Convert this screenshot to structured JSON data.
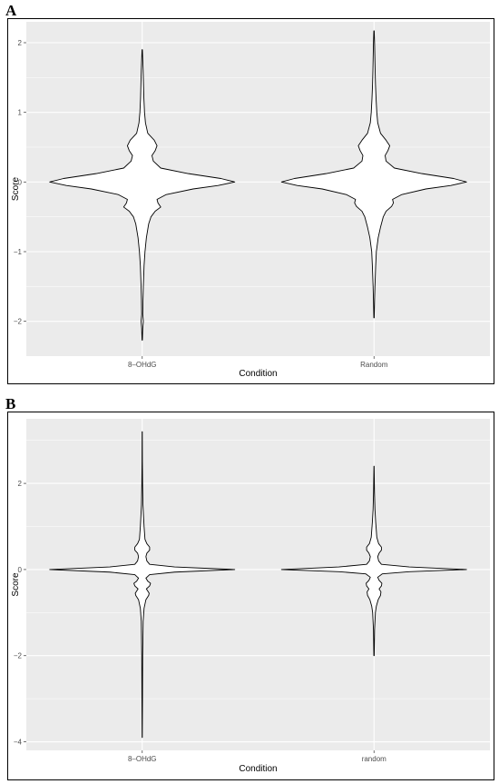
{
  "chart_data": [
    {
      "panel": "A",
      "type": "violin",
      "xlabel": "Condition",
      "ylabel": "Score",
      "categories": [
        "8–OHdG",
        "Random"
      ],
      "yticks": [
        -2,
        -1,
        0,
        1,
        2
      ],
      "ytick_labels": [
        "−2",
        "−1",
        "0",
        "1",
        "2"
      ],
      "ylim": [
        -2.5,
        2.3
      ],
      "grid": true,
      "series": [
        {
          "category": "8–OHdG",
          "min": -2.27,
          "max": 1.9,
          "profile": [
            [
              -2.27,
              0.002
            ],
            [
              -2.1,
              0.006
            ],
            [
              -2.0,
              0.012
            ],
            [
              -1.9,
              0.006
            ],
            [
              -1.7,
              0.008
            ],
            [
              -1.5,
              0.012
            ],
            [
              -1.2,
              0.02
            ],
            [
              -1.0,
              0.03
            ],
            [
              -0.8,
              0.045
            ],
            [
              -0.6,
              0.07
            ],
            [
              -0.5,
              0.095
            ],
            [
              -0.42,
              0.14
            ],
            [
              -0.36,
              0.2
            ],
            [
              -0.3,
              0.17
            ],
            [
              -0.25,
              0.16
            ],
            [
              -0.18,
              0.26
            ],
            [
              -0.1,
              0.55
            ],
            [
              -0.05,
              0.82
            ],
            [
              0.0,
              1.0
            ],
            [
              0.05,
              0.85
            ],
            [
              0.12,
              0.5
            ],
            [
              0.2,
              0.2
            ],
            [
              0.3,
              0.12
            ],
            [
              0.38,
              0.105
            ],
            [
              0.45,
              0.14
            ],
            [
              0.52,
              0.16
            ],
            [
              0.6,
              0.13
            ],
            [
              0.7,
              0.06
            ],
            [
              0.85,
              0.035
            ],
            [
              1.0,
              0.025
            ],
            [
              1.2,
              0.018
            ],
            [
              1.4,
              0.014
            ],
            [
              1.6,
              0.01
            ],
            [
              1.75,
              0.006
            ],
            [
              1.9,
              0.002
            ]
          ]
        },
        {
          "category": "Random",
          "min": -1.95,
          "max": 2.17,
          "profile": [
            [
              -1.95,
              0.002
            ],
            [
              -1.7,
              0.006
            ],
            [
              -1.5,
              0.01
            ],
            [
              -1.2,
              0.018
            ],
            [
              -1.0,
              0.025
            ],
            [
              -0.8,
              0.045
            ],
            [
              -0.65,
              0.07
            ],
            [
              -0.5,
              0.1
            ],
            [
              -0.42,
              0.13
            ],
            [
              -0.35,
              0.19
            ],
            [
              -0.3,
              0.21
            ],
            [
              -0.25,
              0.2
            ],
            [
              -0.18,
              0.3
            ],
            [
              -0.1,
              0.56
            ],
            [
              -0.05,
              0.83
            ],
            [
              0.0,
              1.0
            ],
            [
              0.05,
              0.86
            ],
            [
              0.12,
              0.52
            ],
            [
              0.2,
              0.22
            ],
            [
              0.3,
              0.13
            ],
            [
              0.38,
              0.12
            ],
            [
              0.45,
              0.15
            ],
            [
              0.52,
              0.17
            ],
            [
              0.6,
              0.13
            ],
            [
              0.7,
              0.07
            ],
            [
              0.85,
              0.04
            ],
            [
              1.0,
              0.03
            ],
            [
              1.2,
              0.022
            ],
            [
              1.4,
              0.016
            ],
            [
              1.6,
              0.012
            ],
            [
              1.8,
              0.009
            ],
            [
              2.0,
              0.006
            ],
            [
              2.17,
              0.002
            ]
          ]
        }
      ]
    },
    {
      "panel": "B",
      "type": "violin",
      "xlabel": "Condition",
      "ylabel": "Score",
      "categories": [
        "8–OHdG",
        "random"
      ],
      "yticks": [
        -4,
        -2,
        0,
        2
      ],
      "ytick_labels": [
        "−4",
        "−2",
        "0",
        "2"
      ],
      "ylim": [
        -4.2,
        3.5
      ],
      "grid": true,
      "series": [
        {
          "category": "8–OHdG",
          "min": -3.9,
          "max": 3.2,
          "profile": [
            [
              -3.9,
              0.001
            ],
            [
              -3.0,
              0.003
            ],
            [
              -2.0,
              0.005
            ],
            [
              -1.2,
              0.01
            ],
            [
              -0.9,
              0.02
            ],
            [
              -0.7,
              0.04
            ],
            [
              -0.6,
              0.07
            ],
            [
              -0.55,
              0.075
            ],
            [
              -0.5,
              0.06
            ],
            [
              -0.45,
              0.045
            ],
            [
              -0.38,
              0.08
            ],
            [
              -0.32,
              0.09
            ],
            [
              -0.27,
              0.06
            ],
            [
              -0.2,
              0.04
            ],
            [
              -0.12,
              0.08
            ],
            [
              -0.06,
              0.35
            ],
            [
              0.0,
              1.0
            ],
            [
              0.06,
              0.35
            ],
            [
              0.12,
              0.08
            ],
            [
              0.2,
              0.05
            ],
            [
              0.3,
              0.04
            ],
            [
              0.38,
              0.05
            ],
            [
              0.45,
              0.08
            ],
            [
              0.52,
              0.08
            ],
            [
              0.6,
              0.05
            ],
            [
              0.7,
              0.03
            ],
            [
              0.85,
              0.025
            ],
            [
              1.0,
              0.02
            ],
            [
              1.2,
              0.015
            ],
            [
              1.5,
              0.008
            ],
            [
              2.0,
              0.004
            ],
            [
              2.5,
              0.002
            ],
            [
              3.2,
              0.001
            ]
          ]
        },
        {
          "category": "random",
          "min": -2.0,
          "max": 2.4,
          "profile": [
            [
              -2.0,
              0.002
            ],
            [
              -1.4,
              0.006
            ],
            [
              -1.0,
              0.015
            ],
            [
              -0.85,
              0.025
            ],
            [
              -0.7,
              0.045
            ],
            [
              -0.6,
              0.07
            ],
            [
              -0.52,
              0.075
            ],
            [
              -0.45,
              0.055
            ],
            [
              -0.38,
              0.08
            ],
            [
              -0.32,
              0.085
            ],
            [
              -0.25,
              0.055
            ],
            [
              -0.18,
              0.04
            ],
            [
              -0.1,
              0.09
            ],
            [
              -0.05,
              0.38
            ],
            [
              0.0,
              1.0
            ],
            [
              0.06,
              0.38
            ],
            [
              0.12,
              0.08
            ],
            [
              0.2,
              0.05
            ],
            [
              0.3,
              0.04
            ],
            [
              0.38,
              0.055
            ],
            [
              0.45,
              0.08
            ],
            [
              0.52,
              0.08
            ],
            [
              0.6,
              0.05
            ],
            [
              0.75,
              0.03
            ],
            [
              0.9,
              0.025
            ],
            [
              1.1,
              0.018
            ],
            [
              1.4,
              0.01
            ],
            [
              1.8,
              0.005
            ],
            [
              2.4,
              0.001
            ]
          ]
        }
      ]
    }
  ]
}
